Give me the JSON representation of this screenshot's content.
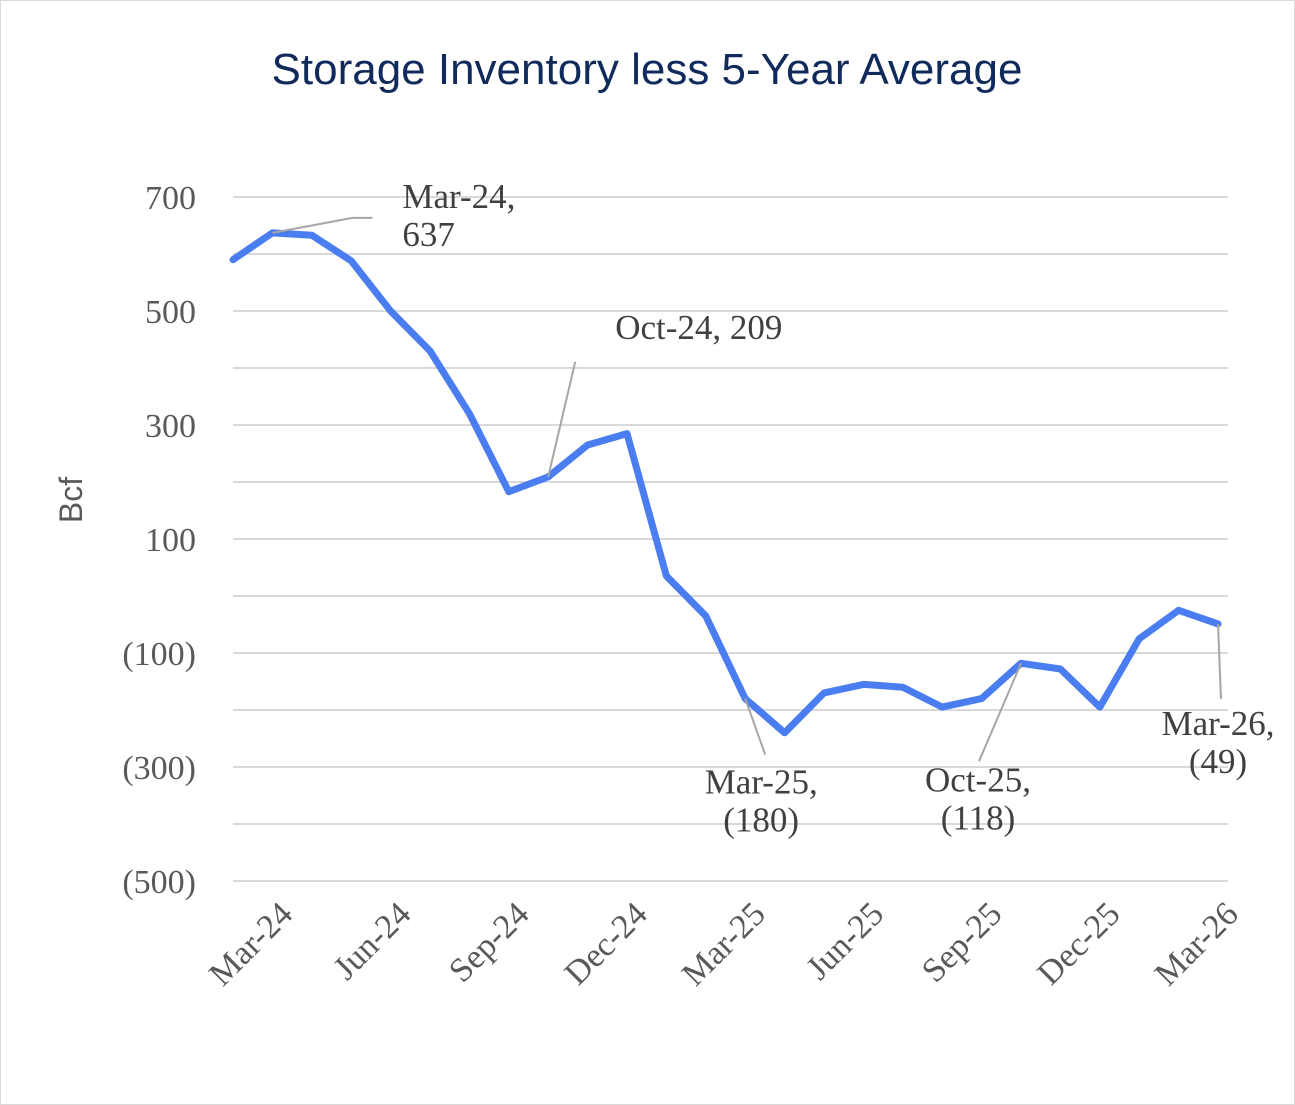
{
  "chart_data": {
    "type": "line",
    "title": "Storage Inventory less 5-Year Average",
    "xlabel": "",
    "ylabel": "Bcf",
    "ylim": [
      -500,
      700
    ],
    "yticks": [
      700,
      500,
      300,
      100,
      -100,
      -300,
      -500
    ],
    "ytick_labels": [
      "700",
      "500",
      "300",
      "100",
      "(100)",
      "(300)",
      "(500)"
    ],
    "grid": true,
    "x": [
      "Feb-24",
      "Mar-24",
      "Apr-24",
      "May-24",
      "Jun-24",
      "Jul-24",
      "Aug-24",
      "Sep-24",
      "Oct-24",
      "Nov-24",
      "Dec-24",
      "Jan-25",
      "Feb-25",
      "Mar-25",
      "Apr-25",
      "May-25",
      "Jun-25",
      "Jul-25",
      "Aug-25",
      "Sep-25",
      "Oct-25",
      "Nov-25",
      "Dec-25",
      "Jan-26",
      "Feb-26",
      "Mar-26"
    ],
    "xtick_labels": [
      "Mar-24",
      "Jun-24",
      "Sep-24",
      "Dec-24",
      "Mar-25",
      "Jun-25",
      "Sep-25",
      "Dec-25",
      "Mar-26"
    ],
    "series": [
      {
        "color": "#4a7ef0",
        "values": [
          590,
          637,
          633,
          588,
          500,
          430,
          320,
          183,
          209,
          265,
          285,
          35,
          -35,
          -180,
          -240,
          -170,
          -155,
          -160,
          -195,
          -180,
          -118,
          -128,
          -195,
          -75,
          -25,
          -49
        ]
      }
    ],
    "annotations": [
      {
        "x": "Mar-24",
        "line1": "Mar-24,",
        "line2": "637"
      },
      {
        "x": "Oct-24",
        "line1": "Oct-24,  209"
      },
      {
        "x": "Mar-25",
        "line1": "Mar-25,",
        "line2": "(180)"
      },
      {
        "x": "Oct-25",
        "line1": "Oct-25,",
        "line2": "(118)"
      },
      {
        "x": "Mar-26",
        "line1": "Mar-26,",
        "line2": "(49)"
      }
    ],
    "colors": {
      "title": "#102a5c",
      "axis_text": "#595959",
      "grid": "#d9d9d9",
      "leader": "#a6a6a6"
    }
  }
}
